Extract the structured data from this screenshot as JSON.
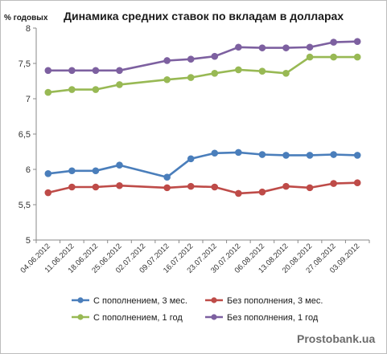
{
  "chart_data": {
    "type": "line",
    "title": "Динамика средних ставок по вкладам в долларах",
    "ylabel": "% годовых",
    "xlabel": "",
    "ylim": [
      5,
      8
    ],
    "yticks": [
      "5",
      "5,5",
      "6",
      "6,5",
      "7",
      "7,5",
      "8"
    ],
    "ytick_values": [
      5,
      5.5,
      6,
      6.5,
      7,
      7.5,
      8
    ],
    "grid": false,
    "legend_position": "bottom",
    "x": [
      "04.06.2012",
      "11.06.2012",
      "18.06.2012",
      "25.06.2012",
      "02.07.2012",
      "09.07.2012",
      "16.07.2012",
      "23.07.2012",
      "30.07.2012",
      "06.08.2012",
      "13.08.2012",
      "20.08.2012",
      "27.08.2012",
      "03.09.2012"
    ],
    "series": [
      {
        "name": "С пополнением, 3 мес.",
        "color": "#4a7ebb",
        "values": [
          5.94,
          5.98,
          5.98,
          6.06,
          null,
          5.89,
          6.15,
          6.23,
          6.24,
          6.21,
          6.2,
          6.2,
          6.21,
          6.2
        ]
      },
      {
        "name": "Без пополнения, 3 мес.",
        "color": "#be4b48",
        "values": [
          5.67,
          5.75,
          5.75,
          5.77,
          null,
          5.74,
          5.76,
          5.75,
          5.66,
          5.68,
          5.76,
          5.74,
          5.8,
          5.81
        ]
      },
      {
        "name": "С пополнением, 1 год",
        "color": "#98b954",
        "values": [
          7.09,
          7.13,
          7.13,
          7.2,
          null,
          7.27,
          7.3,
          7.36,
          7.41,
          7.39,
          7.36,
          7.59,
          7.59,
          7.59
        ]
      },
      {
        "name": "Без пополнения, 1 год",
        "color": "#7d60a0",
        "values": [
          7.4,
          7.4,
          7.4,
          7.4,
          null,
          7.54,
          7.56,
          7.6,
          7.73,
          7.72,
          7.72,
          7.73,
          7.8,
          7.81
        ]
      }
    ]
  },
  "watermark": "Prostobank.ua"
}
